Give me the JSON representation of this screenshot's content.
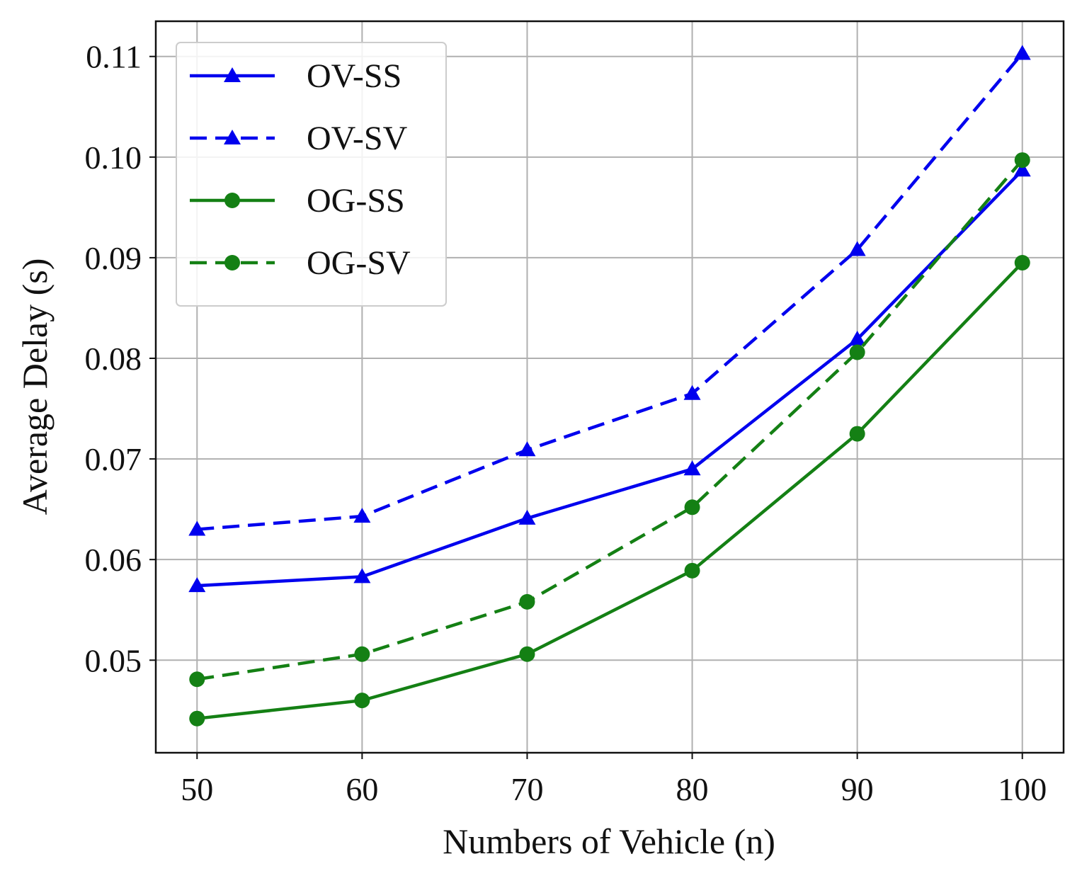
{
  "chart_data": {
    "type": "line",
    "title": "",
    "xlabel": "Numbers of Vehicle (n)",
    "ylabel": "Average Delay (s)",
    "x": [
      50,
      60,
      70,
      80,
      90,
      100
    ],
    "x_tick_labels": [
      "50",
      "60",
      "70",
      "80",
      "90",
      "100"
    ],
    "y_ticks": [
      0.05,
      0.06,
      0.07,
      0.08,
      0.09,
      0.1,
      0.11
    ],
    "y_tick_labels": [
      "0.05",
      "0.06",
      "0.07",
      "0.08",
      "0.09",
      "0.10",
      "0.11"
    ],
    "xlim": [
      47.5,
      102.5
    ],
    "ylim": [
      0.0408,
      0.1135
    ],
    "grid": true,
    "legend_position": "top-left",
    "series": [
      {
        "name": "OV-SS",
        "color": "#0000ee",
        "style": "solid",
        "marker": "triangle",
        "values": [
          0.0574,
          0.0583,
          0.0641,
          0.069,
          0.0819,
          0.0987
        ]
      },
      {
        "name": "OV-SV",
        "color": "#0000ee",
        "style": "dashed",
        "marker": "triangle",
        "values": [
          0.063,
          0.0643,
          0.0709,
          0.0765,
          0.0908,
          0.1103
        ]
      },
      {
        "name": "OG-SS",
        "color": "#148014",
        "style": "solid",
        "marker": "circle",
        "values": [
          0.0442,
          0.046,
          0.0506,
          0.0589,
          0.0725,
          0.0895
        ]
      },
      {
        "name": "OG-SV",
        "color": "#148014",
        "style": "dashed",
        "marker": "circle",
        "values": [
          0.0481,
          0.0506,
          0.0558,
          0.0652,
          0.0806,
          0.0997
        ]
      }
    ]
  }
}
